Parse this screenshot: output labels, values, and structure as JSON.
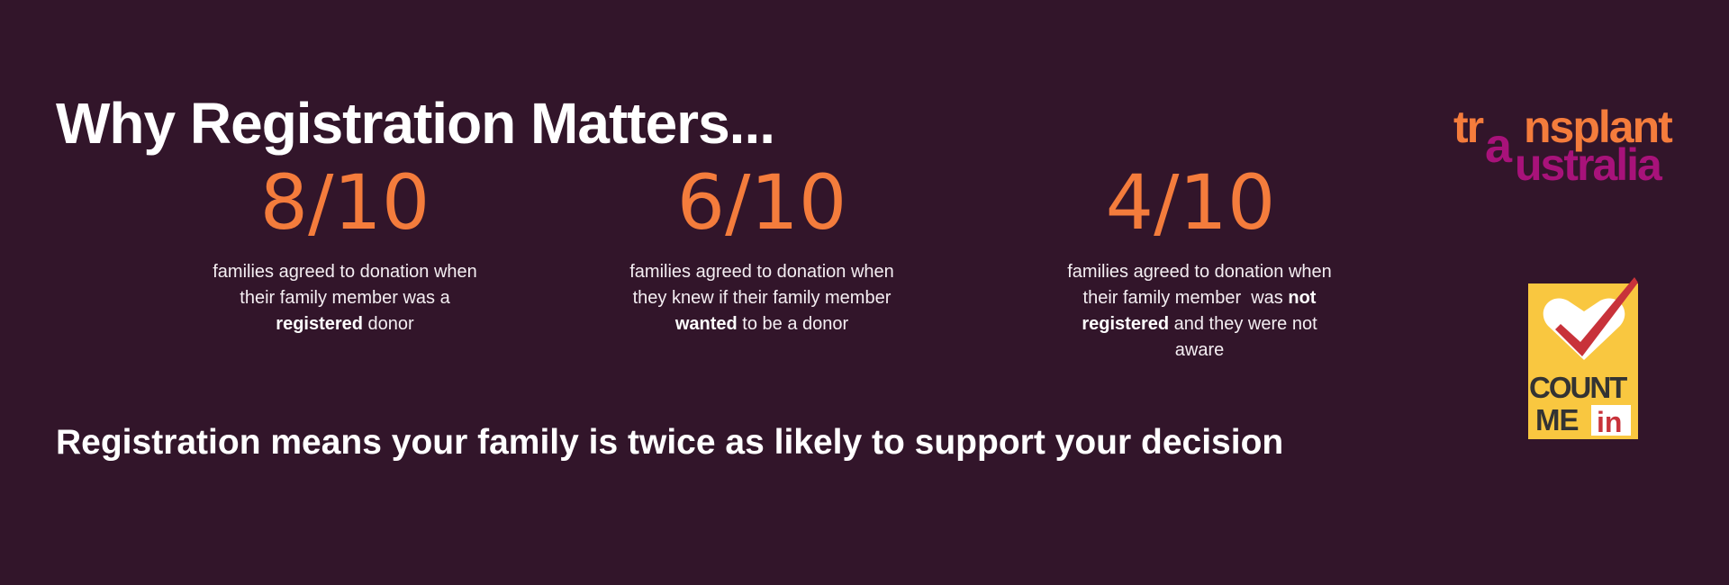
{
  "title": "Why Registration Matters...",
  "stats": [
    {
      "value": "8/10",
      "line1": "families agreed to donation when",
      "line2": "their family member was a",
      "bold": "registered",
      "rest": " donor"
    },
    {
      "value": "6/10",
      "line1": "families agreed to donation when",
      "line2": "they knew if their family member",
      "bold": "wanted",
      "rest": " to be a donor"
    },
    {
      "value": "4/10",
      "line1": "families agreed to donation when",
      "line2_pre": "their family member  was ",
      "line2_bold": "not",
      "bold": "registered",
      "rest": " and they were not",
      "line4": "aware"
    }
  ],
  "tagline": "Registration means your family is twice as likely to support your decision",
  "logos": {
    "transplant_australia": "transplant australia",
    "count_me_in": "COUNT ME in"
  },
  "colors": {
    "background": "#32152a",
    "accent_orange": "#f47c3c",
    "accent_magenta": "#a8127a",
    "badge_yellow": "#f9c740"
  }
}
